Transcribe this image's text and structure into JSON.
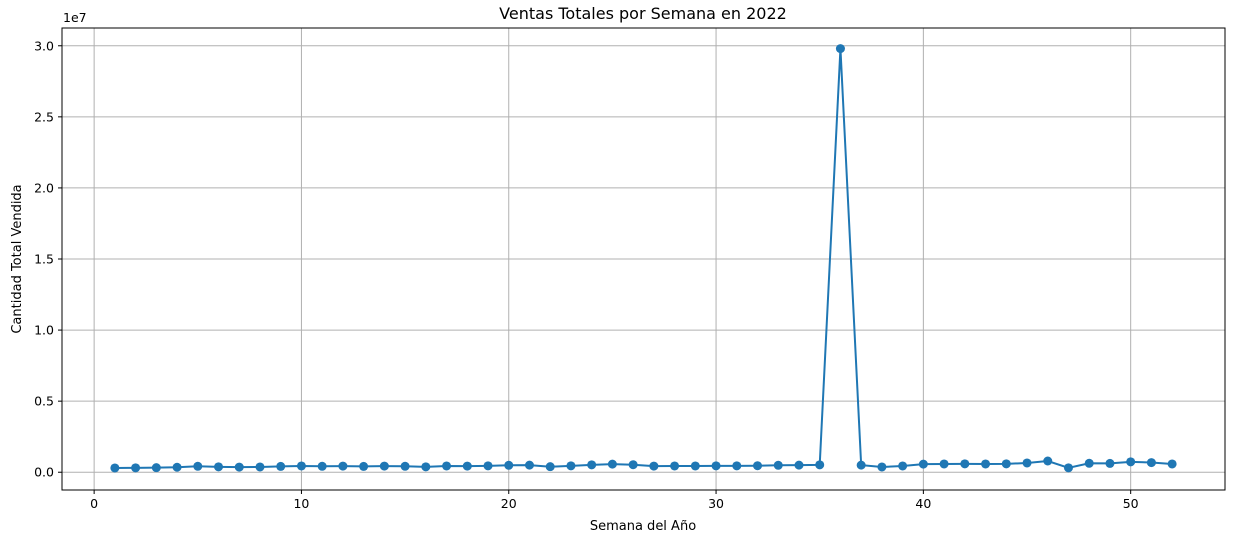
{
  "chart_data": {
    "type": "line",
    "title": "Ventas Totales por Semana en 2022",
    "xlabel": "Semana del Año",
    "ylabel": "Cantidad Total Vendida",
    "y_offset_label": "1e7",
    "xlim": [
      -1.55,
      54.55
    ],
    "ylim": [
      -1250000,
      31250000
    ],
    "x_ticks": [
      0,
      10,
      20,
      30,
      40,
      50
    ],
    "x_tick_labels": [
      "0",
      "10",
      "20",
      "30",
      "40",
      "50"
    ],
    "y_ticks": [
      0,
      5000000,
      10000000,
      15000000,
      20000000,
      25000000,
      30000000
    ],
    "y_tick_labels": [
      "0.0",
      "0.5",
      "1.0",
      "1.5",
      "2.0",
      "2.5",
      "3.0"
    ],
    "grid": true,
    "line_color": "#1f77b4",
    "series": [
      {
        "x": [
          1,
          2,
          3,
          4,
          5,
          6,
          7,
          8,
          9,
          10,
          11,
          12,
          13,
          14,
          15,
          16,
          17,
          18,
          19,
          20,
          21,
          22,
          23,
          24,
          25,
          26,
          27,
          28,
          29,
          30,
          31,
          32,
          33,
          34,
          35,
          36,
          37,
          38,
          39,
          40,
          41,
          42,
          43,
          44,
          45,
          46,
          47,
          48,
          49,
          50,
          51,
          52
        ],
        "values": [
          300000,
          310000,
          320000,
          350000,
          420000,
          380000,
          360000,
          370000,
          410000,
          440000,
          420000,
          430000,
          410000,
          430000,
          420000,
          380000,
          440000,
          430000,
          450000,
          490000,
          500000,
          390000,
          450000,
          520000,
          570000,
          530000,
          430000,
          440000,
          440000,
          450000,
          450000,
          460000,
          490000,
          500000,
          520000,
          29800000,
          500000,
          370000,
          440000,
          570000,
          580000,
          590000,
          580000,
          590000,
          650000,
          790000,
          310000,
          630000,
          620000,
          730000,
          680000,
          580000
        ]
      }
    ]
  }
}
